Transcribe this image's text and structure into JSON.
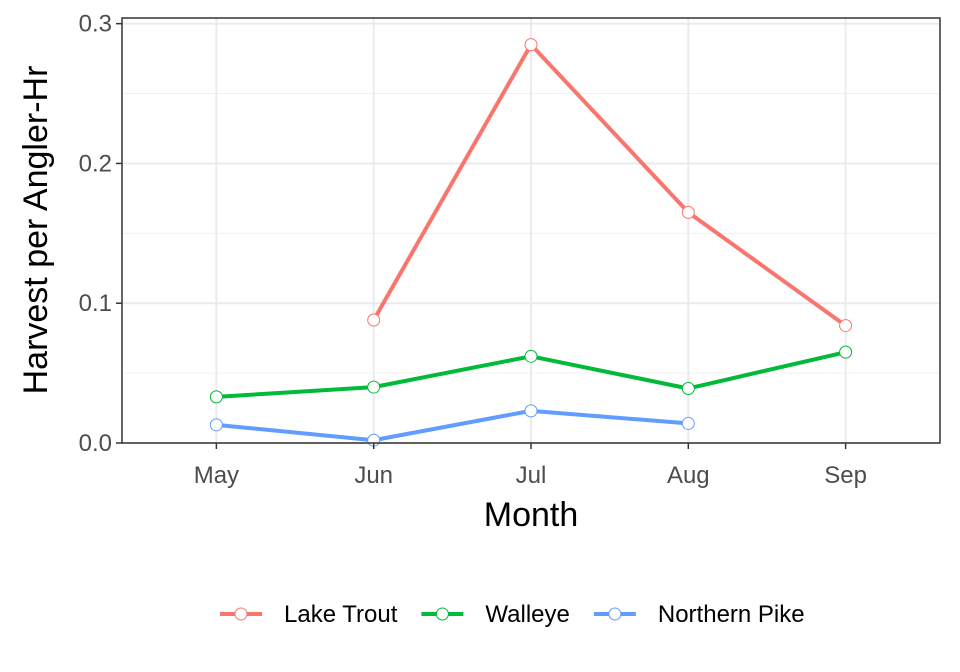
{
  "chart_data": {
    "type": "line",
    "title": "",
    "xlabel": "Month",
    "ylabel": "Harvest per Angler-Hr",
    "categories": [
      "May",
      "Jun",
      "Jul",
      "Aug",
      "Sep"
    ],
    "ylim": [
      0,
      0.3
    ],
    "yticks": [
      "0.0",
      "0.1",
      "0.2",
      "0.3"
    ],
    "grid": true,
    "legend_position": "bottom",
    "series": [
      {
        "name": "Lake Trout",
        "color": "#F8766D",
        "values": [
          null,
          0.088,
          0.285,
          0.165,
          0.084
        ]
      },
      {
        "name": "Walleye",
        "color": "#00BA38",
        "values": [
          0.033,
          0.04,
          0.062,
          0.039,
          0.065
        ]
      },
      {
        "name": "Northern Pike",
        "color": "#619CFF",
        "values": [
          0.013,
          0.002,
          0.023,
          0.014,
          null
        ]
      }
    ]
  }
}
